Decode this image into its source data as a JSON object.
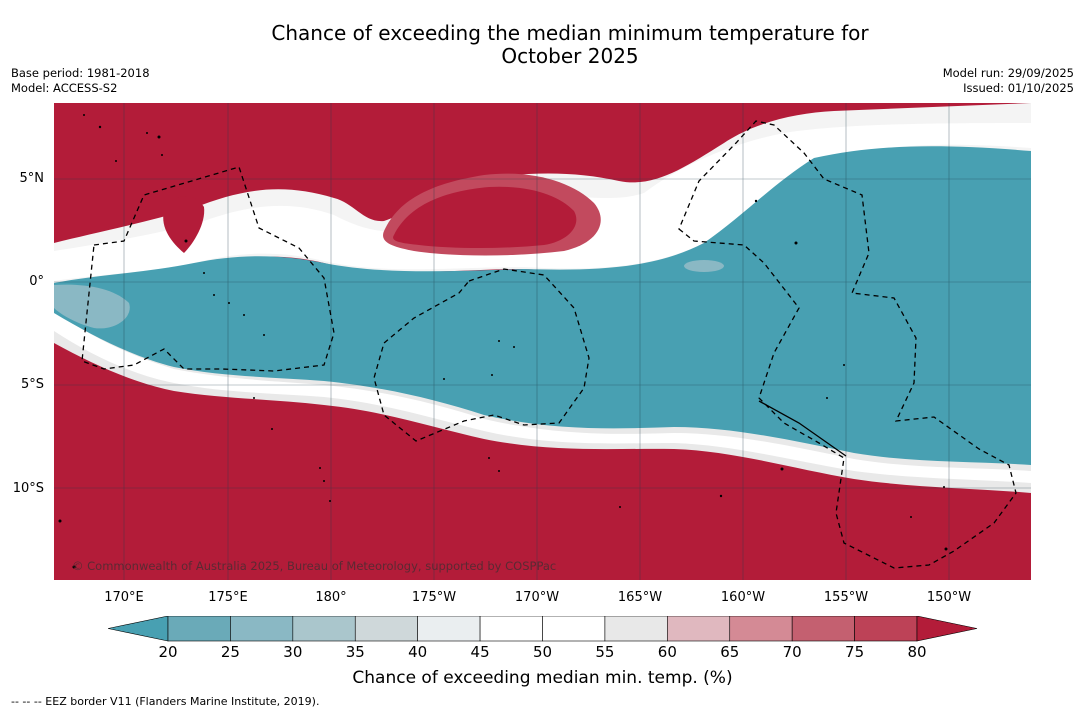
{
  "header": {
    "title_line1": "Chance of exceeding the median minimum temperature for",
    "title_line2": "October 2025",
    "base_period": "Base period: 1981-2018",
    "model": "Model: ACCESS-S2",
    "model_run": "Model run: 29/09/2025",
    "issued": "Issued: 01/10/2025"
  },
  "map": {
    "lat_labels": [
      "5°N",
      "0°",
      "5°S",
      "10°S"
    ],
    "lon_labels": [
      "170°E",
      "175°E",
      "180°",
      "175°W",
      "170°W",
      "165°W",
      "160°W",
      "155°W",
      "150°W"
    ],
    "copyright": "© Commonwealth of Australia 2025, Bureau of Meteorology, supported by COSPPac",
    "colors": {
      "high": "#b31c39",
      "low": "#48a0b2",
      "neutral": "#ffffff",
      "eez_line": "#000000"
    }
  },
  "colorbar": {
    "ticks": [
      "20",
      "25",
      "30",
      "35",
      "40",
      "45",
      "50",
      "55",
      "60",
      "65",
      "70",
      "75",
      "80"
    ],
    "colors": [
      "#6aaab8",
      "#8ab8c4",
      "#aac6cc",
      "#cfd8da",
      "#eaeef0",
      "#ffffff",
      "#ffffff",
      "#e8e8e8",
      "#e0b8bf",
      "#d48a95",
      "#c46070",
      "#bd4257"
    ],
    "below_color": "#48a0b2",
    "above_color": "#b31c39",
    "label": "Chance of exceeding median min. temp. (%)"
  },
  "footnote": "--  --  -- EEZ border V11 (Flanders Marine Institute, 2019)."
}
